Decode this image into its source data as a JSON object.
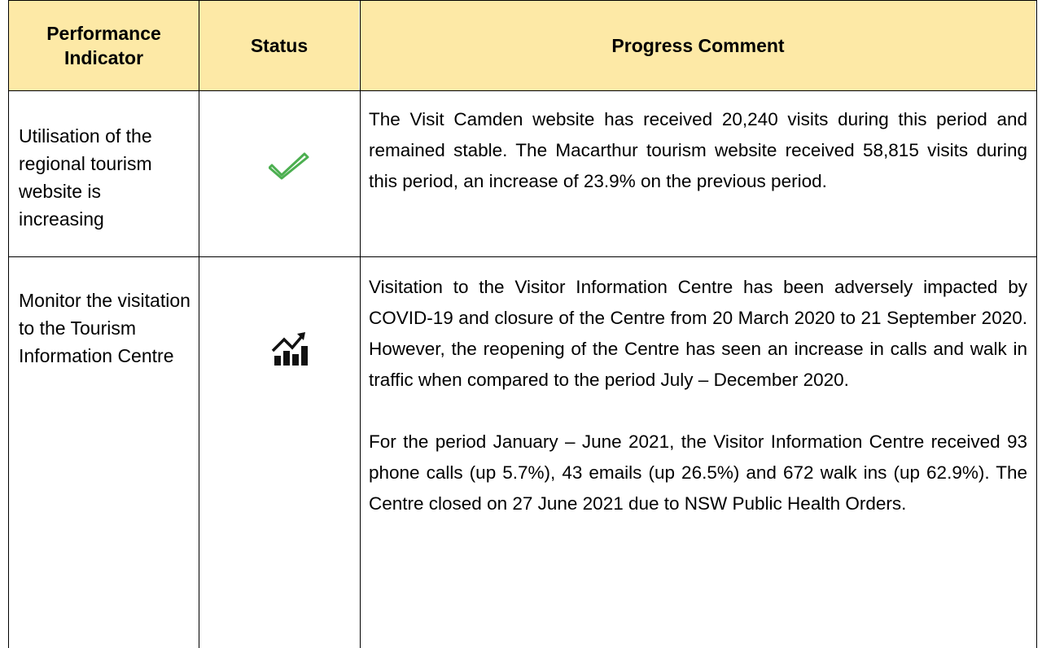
{
  "table": {
    "header": [
      "Performance Indicator",
      "Status",
      "Progress Comment"
    ],
    "rows": [
      {
        "indicator": "Utilisation of the regional tourism website is increasing",
        "comment": [
          "The Visit Camden website has received 20,240 visits during this period and remained stable. The Macarthur tourism website received 58,815 visits during this period, an increase of 23.9% on the previous period."
        ]
      },
      {
        "indicator": "Monitor the visitation to the Tourism Information Centre",
        "comment": [
          "Visitation to the Visitor Information Centre has been adversely impacted by COVID-19 and closure of the Centre from 20 March 2020 to 21 September 2020. However, the reopening of the Centre has seen an increase in calls and walk in traffic when compared to the period July – December 2020.",
          "For the period January – June 2021, the Visitor Information Centre received 93 phone calls (up 5.7%), 43 emails (up 26.5%) and 672 walk ins (up 62.9%). The Centre closed on 27 June 2021 due to NSW Public Health Orders."
        ]
      }
    ]
  }
}
